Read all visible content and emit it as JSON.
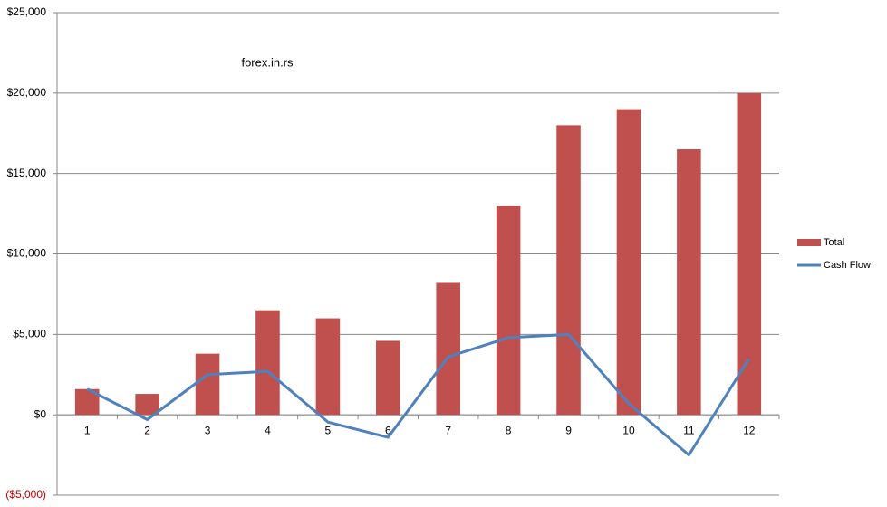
{
  "chart_data": {
    "type": "bar",
    "annotation": "forex.in.rs",
    "categories": [
      1,
      2,
      3,
      4,
      5,
      6,
      7,
      8,
      9,
      10,
      11,
      12
    ],
    "series": [
      {
        "name": "Total",
        "type": "bar",
        "color": "#c0504d",
        "values": [
          1600,
          1300,
          3800,
          6500,
          6000,
          4600,
          8200,
          13000,
          18000,
          19000,
          16500,
          20000
        ]
      },
      {
        "name": "Cash Flow",
        "type": "line",
        "color": "#4f81bd",
        "values": [
          1600,
          -300,
          2500,
          2700,
          -450,
          -1400,
          3600,
          4800,
          5000,
          700,
          -2500,
          3500
        ]
      }
    ],
    "ylim": [
      -5000,
      25000
    ],
    "yticks": [
      {
        "value": -5000,
        "label": "($5,000)"
      },
      {
        "value": 0,
        "label": "$0"
      },
      {
        "value": 5000,
        "label": "$5,000"
      },
      {
        "value": 10000,
        "label": "$10,000"
      },
      {
        "value": 15000,
        "label": "$15,000"
      },
      {
        "value": 20000,
        "label": "$20,000"
      },
      {
        "value": 25000,
        "label": "$25,000"
      }
    ],
    "negative_tick_color": "#c00000",
    "grid": true,
    "legend": "right"
  }
}
